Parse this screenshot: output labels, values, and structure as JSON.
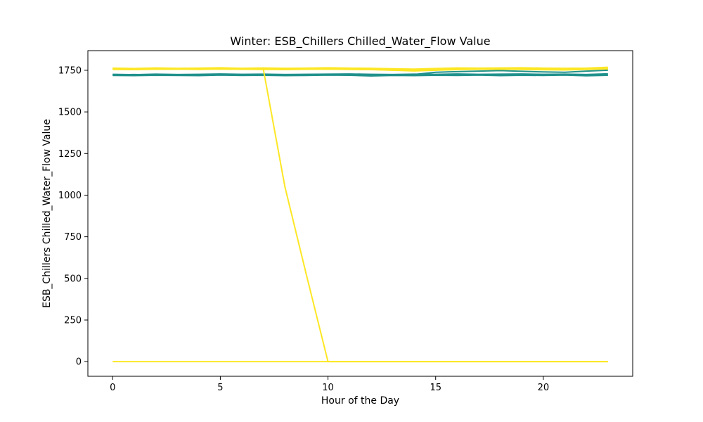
{
  "chart_data": {
    "type": "line",
    "title": "Winter: ESB_Chillers Chilled_Water_Flow Value",
    "xlabel": "Hour of the Day",
    "ylabel": "ESB_Chillers Chilled_Water_Flow Value",
    "xlim": [
      -1.15,
      24.15
    ],
    "ylim": [
      -88,
      1868
    ],
    "x_ticks": [
      0,
      5,
      10,
      15,
      20
    ],
    "y_ticks": [
      0,
      250,
      500,
      750,
      1000,
      1250,
      1500,
      1750
    ],
    "grid": false,
    "legend": "none",
    "x": [
      0,
      1,
      2,
      3,
      4,
      5,
      6,
      7,
      8,
      9,
      10,
      11,
      12,
      13,
      14,
      15,
      16,
      17,
      18,
      19,
      20,
      21,
      22,
      23
    ],
    "series": [
      {
        "color": "#21918c",
        "values": [
          1719,
          1718,
          1720,
          1719,
          1718,
          1721,
          1719,
          1720,
          1718,
          1719,
          1721,
          1720,
          1716,
          1719,
          1718,
          1720,
          1719,
          1721,
          1718,
          1720,
          1719,
          1721,
          1717,
          1720
        ]
      },
      {
        "color": "#21918c",
        "values": [
          1722,
          1720,
          1723,
          1721,
          1722,
          1724,
          1722,
          1723,
          1721,
          1722,
          1723,
          1722,
          1721,
          1723,
          1722,
          1721,
          1725,
          1722,
          1723,
          1722,
          1724,
          1722,
          1721,
          1723
        ]
      },
      {
        "color": "#21918c",
        "values": [
          1726,
          1724,
          1727,
          1725,
          1726,
          1728,
          1726,
          1727,
          1725,
          1726,
          1727,
          1728,
          1726,
          1725,
          1727,
          1726,
          1728,
          1726,
          1727,
          1728,
          1726,
          1727,
          1725,
          1729
        ]
      },
      {
        "color": "#21918c",
        "values": [
          1723,
          1725,
          1722,
          1724,
          1723,
          1725,
          1724,
          1722,
          1723,
          1725,
          1724,
          1722,
          1724,
          1723,
          1725,
          1738,
          1742,
          1745,
          1748,
          1744,
          1740,
          1738,
          1745,
          1750
        ]
      },
      {
        "color": "#fde725",
        "values": [
          1756,
          1755,
          1757,
          1756,
          1758,
          1757,
          1756,
          1757,
          1756,
          1758,
          1757,
          1756,
          1755,
          1751,
          1748,
          1752,
          1756,
          1757,
          1756,
          1758,
          1757,
          1756,
          1757,
          1758
        ]
      },
      {
        "color": "#fde725",
        "values": [
          1760,
          1758,
          1761,
          1759,
          1760,
          1762,
          1760,
          1761,
          1759,
          1760,
          1761,
          1760,
          1759,
          1757,
          1753,
          1758,
          1761,
          1760,
          1761,
          1762,
          1760,
          1759,
          1760,
          1764
        ]
      },
      {
        "color": "#fde725",
        "values": [
          1763,
          1761,
          1764,
          1762,
          1763,
          1765,
          1762,
          1764,
          1762,
          1763,
          1765,
          1763,
          1762,
          1759,
          1757,
          1761,
          1764,
          1763,
          1764,
          1765,
          1763,
          1762,
          1763,
          1768
        ]
      },
      {
        "color": "#fde725",
        "values": [
          1755,
          1754,
          1756,
          1757,
          1755,
          1758,
          1756,
          1755,
          1754,
          1756,
          1757,
          1755,
          1754,
          1750,
          1746,
          1750,
          1754,
          1756,
          1757,
          1755,
          1753,
          1752,
          1755,
          1760
        ]
      },
      {
        "color": "#fde725",
        "values": [
          1759,
          1758,
          1760,
          1758,
          1759,
          1761,
          1759,
          1755,
          1050,
          520,
          0,
          0,
          0,
          0,
          0,
          0,
          0,
          0,
          0,
          0,
          0,
          0,
          0,
          0
        ]
      },
      {
        "color": "#fde725",
        "values": [
          0,
          0,
          0,
          0,
          0,
          0,
          0,
          0,
          0,
          0,
          0,
          0,
          0,
          0,
          0,
          0,
          0,
          0,
          0,
          0,
          0,
          0,
          0,
          0
        ]
      }
    ]
  }
}
